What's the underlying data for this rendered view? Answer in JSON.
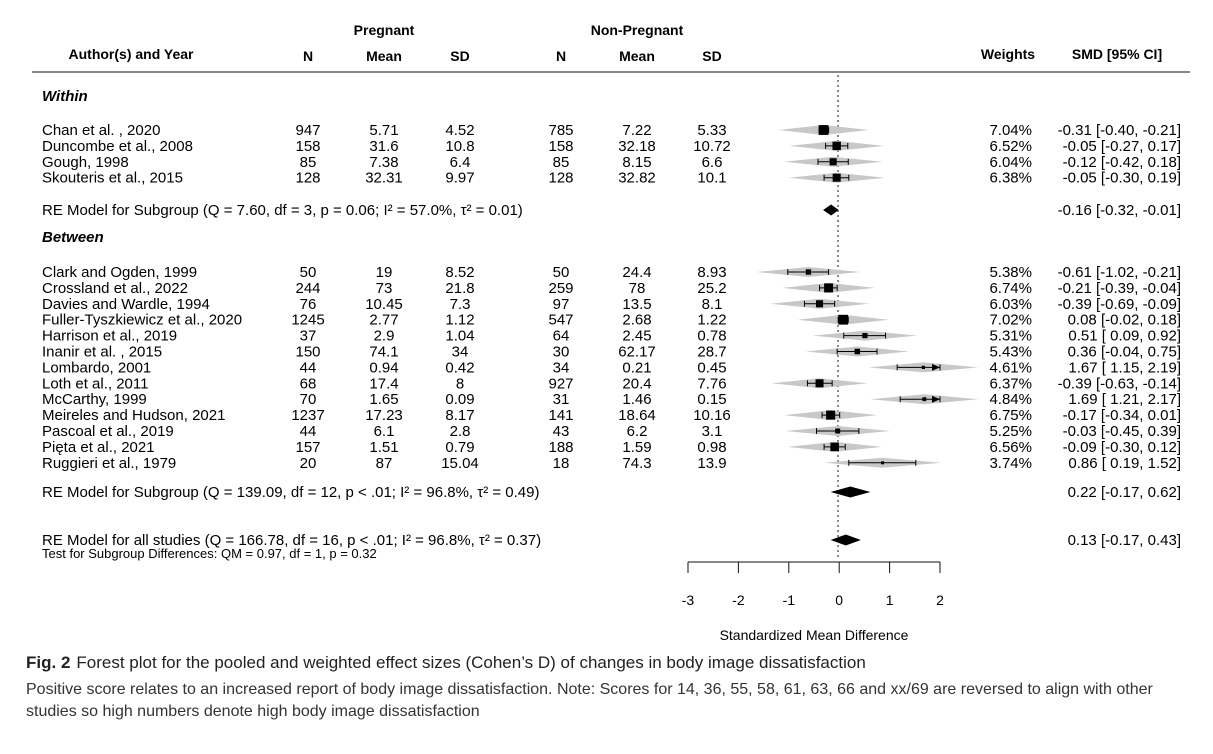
{
  "headers": {
    "group_pregnant": "Pregnant",
    "group_nonpregnant": "Non-Pregnant",
    "author": "Author(s) and Year",
    "n": "N",
    "mean": "Mean",
    "sd": "SD",
    "weights": "Weights",
    "smd": "SMD [95% CI]"
  },
  "chart_data": {
    "type": "forest",
    "xlabel": "Standardized Mean Difference",
    "xlim": [
      -3,
      2
    ],
    "xticks": [
      "-3",
      "-2",
      "-1",
      "0",
      "1",
      "2"
    ],
    "reference_line": 0,
    "subgroups": [
      {
        "label": "Within",
        "studies": [
          {
            "study": "Chan et al. , 2020",
            "n1": "947",
            "m1": "5.71",
            "sd1": "4.52",
            "n2": "785",
            "m2": "7.22",
            "sd2": "5.33",
            "weight": "7.04%",
            "ci_text": "-0.31 [-0.40, -0.21]",
            "est": -0.31,
            "lo": -0.4,
            "hi": -0.21,
            "w": 7.04
          },
          {
            "study": "Duncombe et al., 2008",
            "n1": "158",
            "m1": "31.6",
            "sd1": "10.8",
            "n2": "158",
            "m2": "32.18",
            "sd2": "10.72",
            "weight": "6.52%",
            "ci_text": "-0.05 [-0.27, 0.17]",
            "est": -0.05,
            "lo": -0.27,
            "hi": 0.17,
            "w": 6.52
          },
          {
            "study": "Gough, 1998",
            "n1": "85",
            "m1": "7.38",
            "sd1": "6.4",
            "n2": "85",
            "m2": "8.15",
            "sd2": "6.6",
            "weight": "6.04%",
            "ci_text": "-0.12 [-0.42, 0.18]",
            "est": -0.12,
            "lo": -0.42,
            "hi": 0.18,
            "w": 6.04
          },
          {
            "study": "Skouteris et al., 2015",
            "n1": "128",
            "m1": "32.31",
            "sd1": "9.97",
            "n2": "128",
            "m2": "32.82",
            "sd2": "10.1",
            "weight": "6.38%",
            "ci_text": "-0.05 [-0.30, 0.19]",
            "est": -0.05,
            "lo": -0.3,
            "hi": 0.19,
            "w": 6.38
          }
        ],
        "model": {
          "label": "RE Model for Subgroup (Q = 7.60, df = 3, p = 0.06; I² = 57.0%, τ² = 0.01)",
          "ci_text": "-0.16 [-0.32, -0.01]",
          "est": -0.16,
          "lo": -0.32,
          "hi": -0.01
        }
      },
      {
        "label": "Between",
        "studies": [
          {
            "study": "Clark and Ogden, 1999",
            "n1": "50",
            "m1": "19",
            "sd1": "8.52",
            "n2": "50",
            "m2": "24.4",
            "sd2": "8.93",
            "weight": "5.38%",
            "ci_text": "-0.61 [-1.02, -0.21]",
            "est": -0.61,
            "lo": -1.02,
            "hi": -0.21,
            "w": 5.38
          },
          {
            "study": "Crossland et al., 2022",
            "n1": "244",
            "m1": "73",
            "sd1": "21.8",
            "n2": "259",
            "m2": "78",
            "sd2": "25.2",
            "weight": "6.74%",
            "ci_text": "-0.21 [-0.39, -0.04]",
            "est": -0.21,
            "lo": -0.39,
            "hi": -0.04,
            "w": 6.74
          },
          {
            "study": "Davies and Wardle, 1994",
            "n1": "76",
            "m1": "10.45",
            "sd1": "7.3",
            "n2": "97",
            "m2": "13.5",
            "sd2": "8.1",
            "weight": "6.03%",
            "ci_text": "-0.39 [-0.69, -0.09]",
            "est": -0.39,
            "lo": -0.69,
            "hi": -0.09,
            "w": 6.03
          },
          {
            "study": "Fuller-Tyszkiewicz et al., 2020",
            "n1": "1245",
            "m1": "2.77",
            "sd1": "1.12",
            "n2": "547",
            "m2": "2.68",
            "sd2": "1.22",
            "weight": "7.02%",
            "ci_text": "0.08 [-0.02, 0.18]",
            "est": 0.08,
            "lo": -0.02,
            "hi": 0.18,
            "w": 7.02
          },
          {
            "study": "Harrison et al., 2019",
            "n1": "37",
            "m1": "2.9",
            "sd1": "1.04",
            "n2": "64",
            "m2": "2.45",
            "sd2": "0.78",
            "weight": "5.31%",
            "ci_text": "0.51 [ 0.09, 0.92]",
            "est": 0.51,
            "lo": 0.09,
            "hi": 0.92,
            "w": 5.31
          },
          {
            "study": "Inanir et al. , 2015",
            "n1": "150",
            "m1": "74.1",
            "sd1": "34",
            "n2": "30",
            "m2": "62.17",
            "sd2": "28.7",
            "weight": "5.43%",
            "ci_text": "0.36 [-0.04, 0.75]",
            "est": 0.36,
            "lo": -0.04,
            "hi": 0.75,
            "w": 5.43
          },
          {
            "study": "Lombardo, 2001",
            "n1": "44",
            "m1": "0.94",
            "sd1": "0.42",
            "n2": "34",
            "m2": "0.21",
            "sd2": "0.45",
            "weight": "4.61%",
            "ci_text": "1.67 [ 1.15, 2.19]",
            "est": 1.67,
            "lo": 1.15,
            "hi": 2.19,
            "w": 4.61
          },
          {
            "study": "Loth et al., 2011",
            "n1": "68",
            "m1": "17.4",
            "sd1": "8",
            "n2": "927",
            "m2": "20.4",
            "sd2": "7.76",
            "weight": "6.37%",
            "ci_text": "-0.39 [-0.63, -0.14]",
            "est": -0.39,
            "lo": -0.63,
            "hi": -0.14,
            "w": 6.37
          },
          {
            "study": "McCarthy, 1999",
            "n1": "70",
            "m1": "1.65",
            "sd1": "0.09",
            "n2": "31",
            "m2": "1.46",
            "sd2": "0.15",
            "weight": "4.84%",
            "ci_text": "1.69 [ 1.21, 2.17]",
            "est": 1.69,
            "lo": 1.21,
            "hi": 2.17,
            "w": 4.84
          },
          {
            "study": "Meireles and Hudson, 2021",
            "n1": "1237",
            "m1": "17.23",
            "sd1": "8.17",
            "n2": "141",
            "m2": "18.64",
            "sd2": "10.16",
            "weight": "6.75%",
            "ci_text": "-0.17 [-0.34, 0.01]",
            "est": -0.17,
            "lo": -0.34,
            "hi": 0.01,
            "w": 6.75
          },
          {
            "study": "Pascoal et al., 2019",
            "n1": "44",
            "m1": "6.1",
            "sd1": "2.8",
            "n2": "43",
            "m2": "6.2",
            "sd2": "3.1",
            "weight": "5.25%",
            "ci_text": "-0.03 [-0.45, 0.39]",
            "est": -0.03,
            "lo": -0.45,
            "hi": 0.39,
            "w": 5.25
          },
          {
            "study": "Pięta et al., 2021",
            "n1": "157",
            "m1": "1.51",
            "sd1": "0.79",
            "n2": "188",
            "m2": "1.59",
            "sd2": "0.98",
            "weight": "6.56%",
            "ci_text": "-0.09 [-0.30, 0.12]",
            "est": -0.09,
            "lo": -0.3,
            "hi": 0.12,
            "w": 6.56
          },
          {
            "study": "Ruggieri et al., 1979",
            "n1": "20",
            "m1": "87",
            "sd1": "15.04",
            "n2": "18",
            "m2": "74.3",
            "sd2": "13.9",
            "weight": "3.74%",
            "ci_text": "0.86 [ 0.19, 1.52]",
            "est": 0.86,
            "lo": 0.19,
            "hi": 1.52,
            "w": 3.74
          }
        ],
        "model": {
          "label": "RE Model for Subgroup (Q = 139.09, df = 12, p < .01; I² = 96.8%, τ² = 0.49)",
          "ci_text": "0.22 [-0.17, 0.62]",
          "est": 0.22,
          "lo": -0.17,
          "hi": 0.62
        }
      }
    ],
    "overall": {
      "label": "RE Model for all studies (Q = 166.78, df = 16, p < .01; I² = 96.8%, τ² = 0.37)",
      "ci_text": "0.13 [-0.17, 0.43]",
      "est": 0.13,
      "lo": -0.17,
      "hi": 0.43
    },
    "subgroup_test": "Test for Subgroup Differences: QM = 0.97, df = 1, p = 0.32",
    "colors": {
      "point": "#000000",
      "prediction_band": "#c8c8c8",
      "text": "#111111"
    }
  },
  "caption": {
    "fig_label": "Fig. 2",
    "title": "Forest plot for the pooled and weighted effect sizes (Cohen’s D) of changes in body image dissatisfaction",
    "note": "Positive score relates to an increased report of body image dissatisfaction. Note: Scores for 14, 36, 55, 58, 61, 63, 66 and  xx/69 are reversed to align with other studies so high numbers denote high body image dissatisfaction"
  }
}
